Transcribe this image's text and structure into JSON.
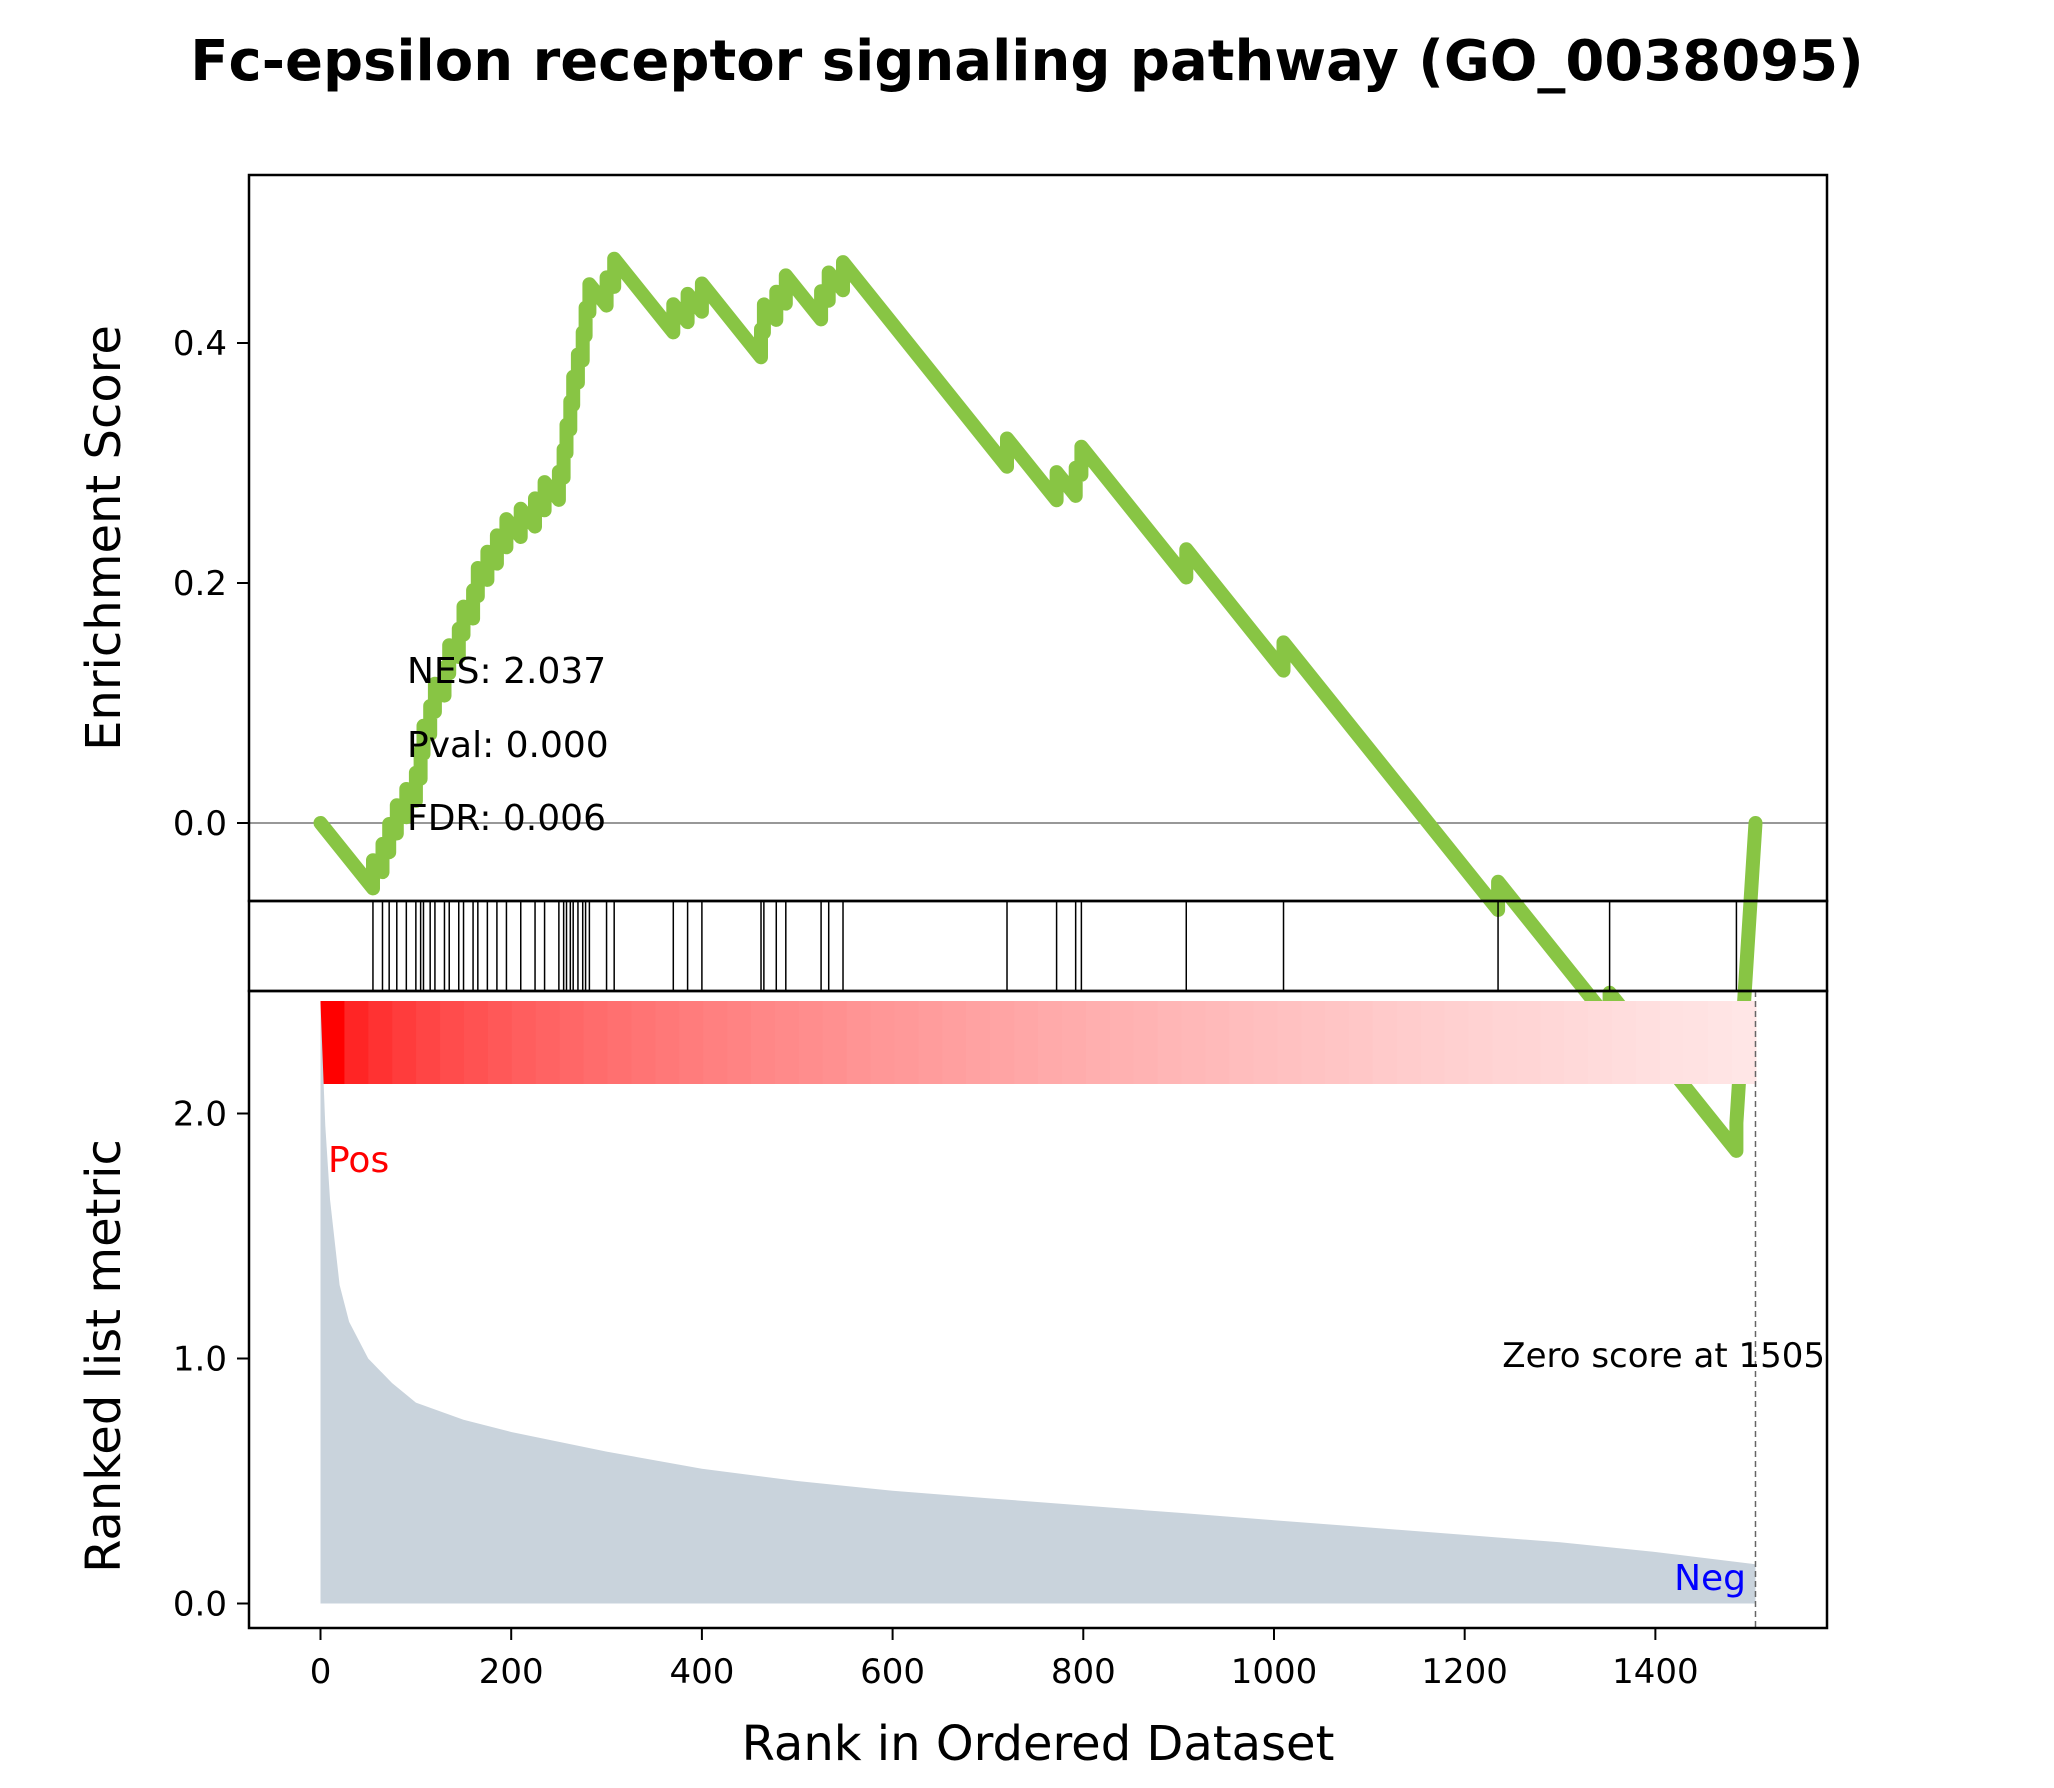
{
  "title": "Fc-epsilon receptor signaling pathway (GO_0038095)",
  "stats": {
    "nes": "NES: 2.037",
    "pval": "Pval: 0.000",
    "fdr": "FDR: 0.006"
  },
  "labels": {
    "pos": "Pos",
    "neg": "Neg",
    "zero_score": "Zero score at 1505"
  },
  "colors": {
    "es_line": "#88c544",
    "metric_fill": "#c9d3dc",
    "heat_start": "#ff0000",
    "heat_end": "#ffe6e6",
    "pos_label": "#ff0000",
    "neg_label": "#0000ff"
  },
  "chart_data": {
    "type": "line",
    "title": "Fc-epsilon receptor signaling pathway (GO_0038095)",
    "xlabel": "Rank in Ordered Dataset",
    "xlim": [
      -75,
      1580
    ],
    "xticks": [
      0,
      200,
      400,
      600,
      800,
      1000,
      1200,
      1400
    ],
    "zero_score_at": 1505,
    "enrichment": {
      "ylabel": "Enrichment Score",
      "ylim": [
        -0.065,
        0.54
      ],
      "yticks": [
        0.0,
        0.2,
        0.4
      ],
      "ytick_labels": [
        "0.0",
        "0.2",
        "0.4"
      ],
      "hits": [
        55,
        65,
        72,
        80,
        90,
        100,
        105,
        108,
        115,
        120,
        130,
        135,
        145,
        150,
        160,
        165,
        175,
        185,
        195,
        210,
        225,
        235,
        250,
        255,
        258,
        262,
        265,
        270,
        275,
        278,
        282,
        300,
        308,
        370,
        385,
        400,
        462,
        465,
        478,
        488,
        525,
        533,
        548,
        720,
        772,
        792,
        798,
        908,
        1010,
        1235,
        1352,
        1485
      ],
      "step_up": 0.0235,
      "peak": {
        "rank": 548,
        "score": 0.51
      },
      "end_score": 0.0
    },
    "hits_panel": {
      "description_none": ""
    },
    "ranked_metric": {
      "ylabel": "Ranked list metric",
      "ylim": [
        -0.1,
        2.5
      ],
      "yticks": [
        0.0,
        1.0,
        2.0
      ],
      "ytick_labels": [
        "0.0",
        "1.0",
        "2.0"
      ],
      "points": [
        [
          0,
          2.45
        ],
        [
          5,
          1.95
        ],
        [
          10,
          1.65
        ],
        [
          20,
          1.3
        ],
        [
          30,
          1.15
        ],
        [
          50,
          1.0
        ],
        [
          75,
          0.9
        ],
        [
          100,
          0.82
        ],
        [
          150,
          0.75
        ],
        [
          200,
          0.7
        ],
        [
          300,
          0.62
        ],
        [
          400,
          0.55
        ],
        [
          500,
          0.5
        ],
        [
          600,
          0.46
        ],
        [
          700,
          0.43
        ],
        [
          800,
          0.4
        ],
        [
          900,
          0.37
        ],
        [
          1000,
          0.34
        ],
        [
          1100,
          0.31
        ],
        [
          1200,
          0.28
        ],
        [
          1300,
          0.25
        ],
        [
          1400,
          0.21
        ],
        [
          1505,
          0.16
        ]
      ]
    }
  }
}
